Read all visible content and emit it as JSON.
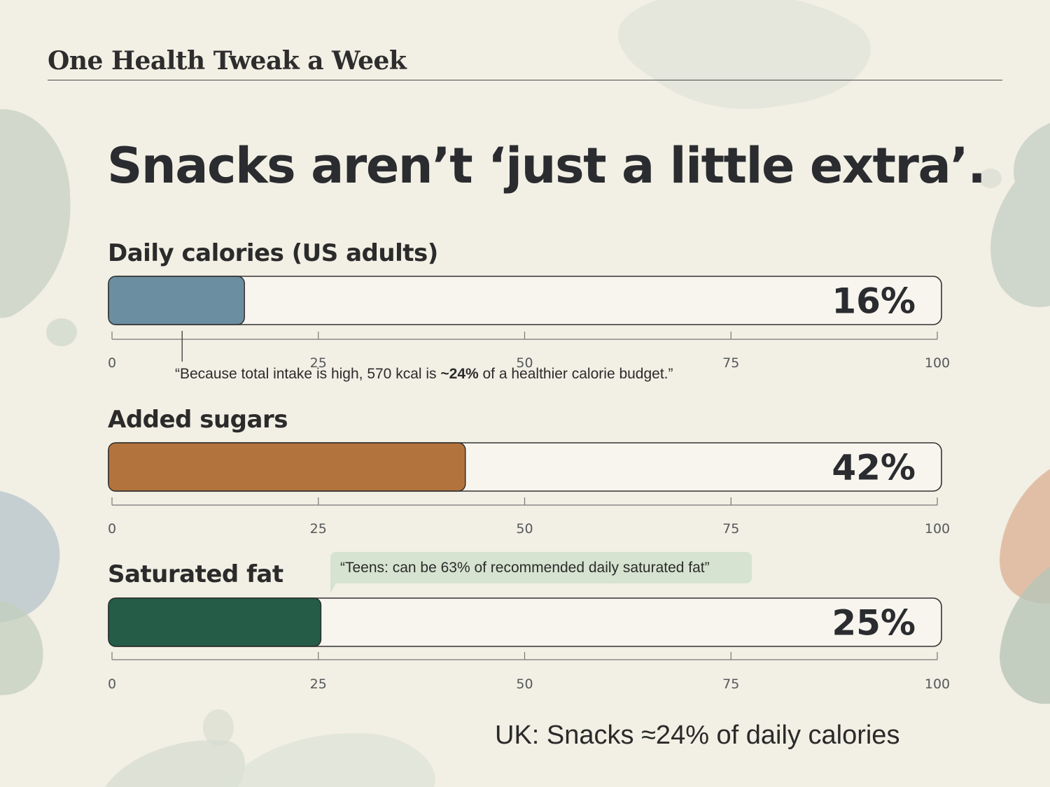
{
  "header": {
    "series_title": "One Health Tweak a Week",
    "headline": "Snacks aren’t ‘just a little extra’."
  },
  "colors": {
    "background": "#f2efe4",
    "calories_bar": "#6b8ea0",
    "sugars_bar": "#b2733c",
    "fat_bar": "#245c47",
    "callout_bg": "#d6e3d0"
  },
  "chart_data": [
    {
      "type": "bar",
      "title": "Daily calories (US adults)",
      "value": 16,
      "value_label": "16%",
      "xlim": [
        0,
        100
      ],
      "ticks": [
        0,
        25,
        50,
        75,
        100
      ],
      "tick_labels": [
        "0",
        "25",
        "50",
        "75",
        "100"
      ],
      "annotation": {
        "before": "“Because total intake is high, 570 kcal is ",
        "bold": "~24%",
        "after": " of a healthier calorie budget.”",
        "marker_value": 8.5
      }
    },
    {
      "type": "bar",
      "title": "Added sugars",
      "value": 42,
      "value_label": "42%",
      "xlim": [
        0,
        100
      ],
      "ticks": [
        0,
        25,
        50,
        75,
        100
      ],
      "tick_labels": [
        "0",
        "25",
        "50",
        "75",
        "100"
      ]
    },
    {
      "type": "bar",
      "title": "Saturated fat",
      "value": 25,
      "value_label": "25%",
      "xlim": [
        0,
        100
      ],
      "ticks": [
        0,
        25,
        50,
        75,
        100
      ],
      "tick_labels": [
        "0",
        "25",
        "50",
        "75",
        "100"
      ],
      "callout": "“Teens: can be 63% of recommended daily saturated fat”"
    }
  ],
  "footer": {
    "text": "UK: Snacks ≈24% of daily calories"
  }
}
